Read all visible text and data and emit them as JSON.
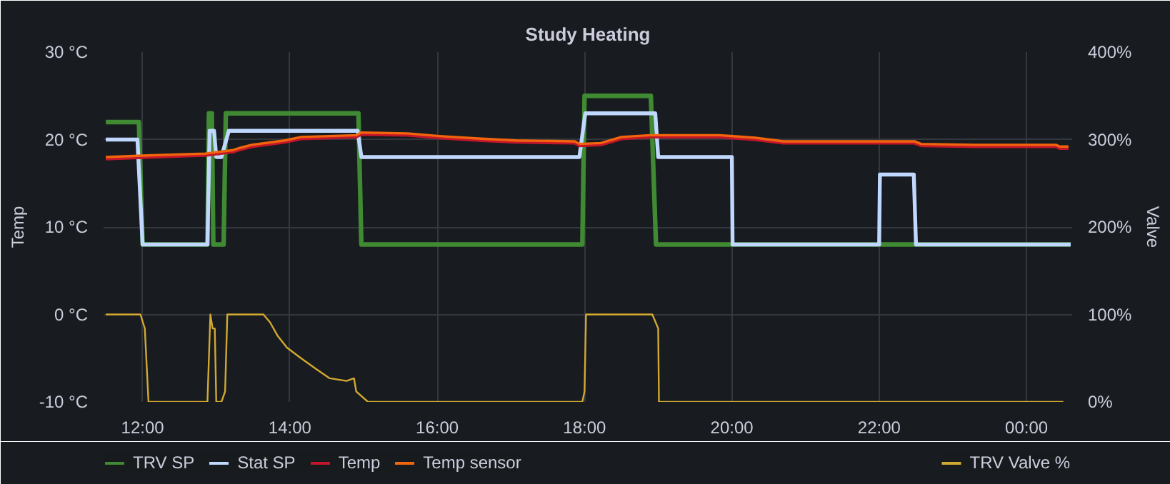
{
  "chart_data": {
    "type": "line",
    "title": "Study Heating",
    "ylabel": "Temp",
    "y2label": "Valve",
    "xlim": [
      11.47,
      24.62
    ],
    "xticks": [
      {
        "value": 12,
        "label": "12:00"
      },
      {
        "value": 14,
        "label": "14:00"
      },
      {
        "value": 16,
        "label": "16:00"
      },
      {
        "value": 18,
        "label": "18:00"
      },
      {
        "value": 20,
        "label": "20:00"
      },
      {
        "value": 22,
        "label": "22:00"
      },
      {
        "value": 24,
        "label": "00:00"
      }
    ],
    "ylim": [
      -10,
      30
    ],
    "yticks": [
      {
        "value": -10,
        "label": "-10 °C"
      },
      {
        "value": 0,
        "label": "0 °C"
      },
      {
        "value": 10,
        "label": "10 °C"
      },
      {
        "value": 20,
        "label": "20 °C"
      },
      {
        "value": 30,
        "label": "30 °C"
      }
    ],
    "y2lim": [
      0,
      400
    ],
    "y2ticks": [
      {
        "value": 0,
        "label": "0%"
      },
      {
        "value": 100,
        "label": "100%"
      },
      {
        "value": 200,
        "label": "200%"
      },
      {
        "value": 300,
        "label": "300%"
      },
      {
        "value": 400,
        "label": "400%"
      }
    ],
    "grid": true,
    "legend": "bottom",
    "line_style": "solid",
    "marker": "none",
    "series": [
      {
        "name": "TRV SP",
        "color": "#3f8a32",
        "x": [
          11.5,
          11.95,
          12.0,
          12.88,
          12.9,
          12.94,
          12.96,
          13.1,
          13.13,
          14.93,
          14.97,
          17.97,
          18.0,
          18.9,
          18.97,
          24.6
        ],
        "values": [
          22,
          22,
          8,
          8,
          23,
          23,
          8,
          8,
          23,
          23,
          8,
          8,
          25,
          25,
          8,
          8
        ]
      },
      {
        "name": "Stat SP",
        "color": "#c0d8ff",
        "x": [
          11.5,
          11.93,
          12.0,
          12.88,
          12.91,
          12.97,
          13.0,
          13.07,
          13.17,
          14.92,
          14.97,
          17.93,
          18.01,
          18.96,
          19.0,
          20.0,
          20.01,
          22.0,
          22.01,
          22.47,
          22.5,
          24.6
        ],
        "values": [
          20,
          20,
          8,
          8,
          21,
          21,
          18,
          18,
          21,
          21,
          18,
          18,
          23,
          23,
          18,
          18,
          8,
          8,
          16,
          16,
          8,
          8
        ]
      },
      {
        "name": "Temp",
        "color": "#c4162a",
        "x": [
          11.5,
          12.13,
          12.85,
          13.23,
          13.3,
          13.48,
          13.93,
          14.15,
          14.9,
          14.97,
          15.6,
          16.03,
          16.6,
          17.07,
          17.87,
          17.93,
          18.22,
          18.5,
          18.89,
          19.83,
          20.32,
          20.7,
          22.48,
          22.57,
          23.3,
          24.4,
          24.45,
          24.57
        ],
        "values": [
          17.8,
          18.0,
          18.2,
          18.6,
          18.8,
          19.2,
          19.7,
          20.1,
          20.3,
          20.6,
          20.5,
          20.2,
          19.9,
          19.7,
          19.6,
          19.3,
          19.4,
          20.1,
          20.3,
          20.3,
          20.0,
          19.6,
          19.6,
          19.3,
          19.2,
          19.2,
          19.0,
          19.0
        ]
      },
      {
        "name": "Temp sensor",
        "color": "#f2650c",
        "x": [
          11.5,
          12.13,
          12.85,
          13.23,
          13.3,
          13.48,
          13.93,
          14.15,
          14.9,
          14.97,
          15.6,
          16.03,
          16.6,
          17.07,
          17.87,
          17.93,
          18.22,
          18.5,
          18.89,
          19.83,
          20.32,
          20.7,
          22.48,
          22.57,
          23.3,
          24.4,
          24.45,
          24.57
        ],
        "values": [
          18.0,
          18.2,
          18.4,
          18.8,
          19.0,
          19.4,
          19.9,
          20.3,
          20.5,
          20.8,
          20.7,
          20.4,
          20.1,
          19.9,
          19.8,
          19.5,
          19.6,
          20.3,
          20.5,
          20.5,
          20.2,
          19.8,
          19.8,
          19.5,
          19.4,
          19.4,
          19.2,
          19.2
        ]
      },
      {
        "name": "TRV Valve %",
        "color": "#d1a932",
        "axis": "y2",
        "x": [
          11.5,
          11.97,
          12.03,
          12.08,
          12.88,
          12.92,
          12.95,
          12.98,
          13.0,
          13.07,
          13.12,
          13.15,
          13.64,
          13.73,
          13.83,
          13.96,
          14.15,
          14.35,
          14.54,
          14.77,
          14.87,
          14.9,
          15.06,
          17.97,
          18.0,
          18.02,
          18.92,
          19.0,
          19.01,
          24.5
        ],
        "values": [
          100,
          100,
          84,
          0,
          0,
          100,
          84,
          84,
          0,
          0,
          12,
          100,
          100,
          91,
          76,
          62,
          50,
          38,
          27,
          24,
          27,
          12,
          0,
          0,
          12,
          100,
          100,
          84,
          0,
          0
        ]
      }
    ]
  }
}
